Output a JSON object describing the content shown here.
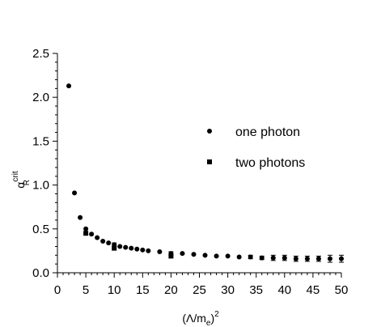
{
  "chart_data": {
    "type": "scatter",
    "xlabel": {
      "base": "(Λ/m",
      "sub": "e",
      "tail": ")",
      "sup": "2"
    },
    "ylabel": {
      "base": "α",
      "sup": "crit",
      "sub": "R"
    },
    "xlim": [
      0,
      50
    ],
    "ylim": [
      0,
      2.5
    ],
    "x_ticks": [
      0,
      5,
      10,
      15,
      20,
      25,
      30,
      35,
      40,
      45,
      50
    ],
    "y_ticks": [
      0.0,
      0.5,
      1.0,
      1.5,
      2.0,
      2.5
    ],
    "x_tick_labels": [
      "0",
      "5",
      "10",
      "15",
      "20",
      "25",
      "30",
      "35",
      "40",
      "45",
      "50"
    ],
    "y_tick_labels": [
      "0.0",
      "0.5",
      "1.0",
      "1.5",
      "2.0",
      "2.5"
    ],
    "grid": false,
    "legend_position": "right-middle",
    "series": [
      {
        "name": "one photon",
        "marker": "circle",
        "color": "#000000",
        "points": [
          {
            "x": 2,
            "y": 2.13
          },
          {
            "x": 3,
            "y": 0.91
          },
          {
            "x": 4,
            "y": 0.63
          },
          {
            "x": 5,
            "y": 0.5
          },
          {
            "x": 6,
            "y": 0.44
          },
          {
            "x": 7,
            "y": 0.4
          },
          {
            "x": 8,
            "y": 0.36
          },
          {
            "x": 9,
            "y": 0.34
          },
          {
            "x": 10,
            "y": 0.32,
            "err": 0.02
          },
          {
            "x": 11,
            "y": 0.3
          },
          {
            "x": 12,
            "y": 0.29
          },
          {
            "x": 13,
            "y": 0.28
          },
          {
            "x": 14,
            "y": 0.27
          },
          {
            "x": 15,
            "y": 0.26
          },
          {
            "x": 16,
            "y": 0.25
          },
          {
            "x": 18,
            "y": 0.24
          },
          {
            "x": 20,
            "y": 0.22,
            "err": 0.02
          },
          {
            "x": 22,
            "y": 0.22
          },
          {
            "x": 24,
            "y": 0.21
          },
          {
            "x": 26,
            "y": 0.2
          },
          {
            "x": 28,
            "y": 0.19
          },
          {
            "x": 30,
            "y": 0.19
          },
          {
            "x": 32,
            "y": 0.18
          },
          {
            "x": 34,
            "y": 0.18,
            "err": 0.02
          },
          {
            "x": 36,
            "y": 0.17,
            "err": 0.02
          },
          {
            "x": 38,
            "y": 0.17,
            "err": 0.03
          },
          {
            "x": 40,
            "y": 0.17,
            "err": 0.03
          },
          {
            "x": 42,
            "y": 0.16,
            "err": 0.03
          },
          {
            "x": 44,
            "y": 0.16,
            "err": 0.03
          },
          {
            "x": 46,
            "y": 0.16,
            "err": 0.03
          },
          {
            "x": 48,
            "y": 0.16,
            "err": 0.04
          },
          {
            "x": 50,
            "y": 0.16,
            "err": 0.04
          }
        ]
      },
      {
        "name": "two photons",
        "marker": "square",
        "color": "#000000",
        "points": [
          {
            "x": 5,
            "y": 0.45
          },
          {
            "x": 10,
            "y": 0.28
          },
          {
            "x": 20,
            "y": 0.19
          }
        ]
      }
    ]
  }
}
